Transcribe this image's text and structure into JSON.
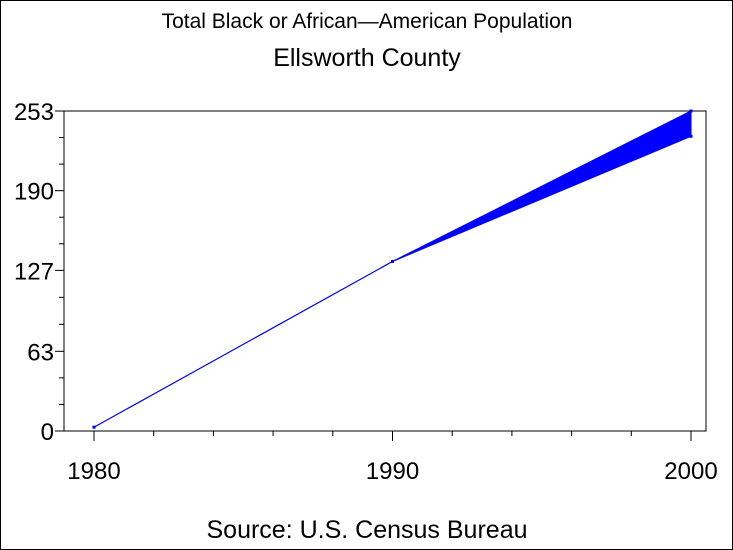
{
  "chart_data": {
    "type": "line",
    "title": "Total Black or African—American Population",
    "subtitle": "Ellsworth County",
    "footnote": "Source: U.S. Census Bureau",
    "xlabel": "",
    "ylabel": "",
    "x": [
      1980,
      1990,
      2000
    ],
    "x_ticks": [
      "1980",
      "1990",
      "2000"
    ],
    "y_ticks": [
      "0",
      "63",
      "127",
      "190",
      "253"
    ],
    "xlim": [
      1980,
      2000
    ],
    "ylim": [
      0,
      253
    ],
    "series": [
      {
        "values": [
          3,
          134,
          253
        ],
        "lower_values": [
          3,
          134,
          233
        ]
      }
    ],
    "colors": {
      "line": "#0000ff",
      "fill": "#0000ff",
      "axis": "#000000"
    },
    "grid": false,
    "legend": "none"
  }
}
